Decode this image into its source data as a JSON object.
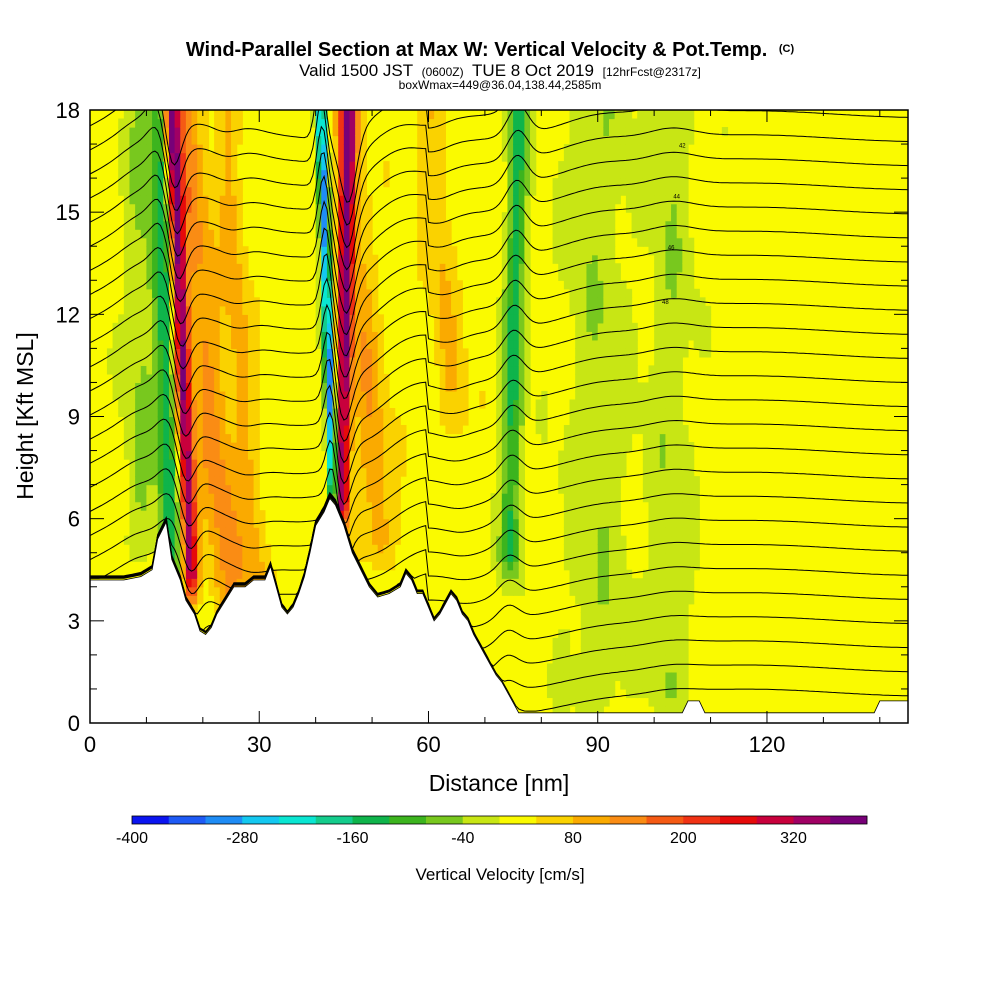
{
  "header": {
    "title": "Wind-Parallel Section at Max W: Vertical Velocity & Pot.Temp.",
    "title_mark": "(C)",
    "valid_prefix": "Valid 1500 JST",
    "valid_utc": "(0600Z)",
    "valid_date": "TUE 8 Oct 2019",
    "forecast": "[12hrFcst@2317z]",
    "box_info": "boxWmax=449@36.04,138.44,2585m"
  },
  "chart_data": {
    "type": "heatmap",
    "title": "Wind-Parallel Section at Max W: Vertical Velocity & Pot.Temp.",
    "xlabel": "Distance [nm]",
    "ylabel": "Height [Kft MSL]",
    "xlim": [
      0,
      145
    ],
    "ylim": [
      0,
      18
    ],
    "x_ticks": [
      0,
      30,
      60,
      90,
      120
    ],
    "y_ticks": [
      0,
      3,
      6,
      9,
      12,
      15,
      18
    ],
    "legend": {
      "title": "Vertical Velocity [cm/s]",
      "placement": "bottom",
      "levels": [
        -400,
        -360,
        -320,
        -280,
        -240,
        -200,
        -160,
        -120,
        -80,
        -40,
        0,
        40,
        80,
        120,
        160,
        200,
        240,
        280,
        320,
        360,
        400
      ],
      "tick_labels": [
        "-400",
        "-280",
        "-160",
        "-40",
        "80",
        "200",
        "320"
      ],
      "colors": [
        "#0a14f0",
        "#1e5af5",
        "#1e8cf5",
        "#14c8f0",
        "#0ae6d2",
        "#14cc8c",
        "#0fb44b",
        "#3cb41e",
        "#78c81e",
        "#c8e614",
        "#fafa00",
        "#fad200",
        "#faaa00",
        "#fa8c14",
        "#f55a14",
        "#f03214",
        "#e60a0a",
        "#c8003c",
        "#a00064",
        "#780078"
      ]
    },
    "background_w": 20,
    "updraft_bands": [
      {
        "x": 16.5,
        "w": 330,
        "width": 1.3,
        "ybot": 3.5,
        "slant": -2.5
      },
      {
        "x": 21,
        "w": 110,
        "width": 3.5,
        "ybot": 3,
        "slant": -6
      },
      {
        "x": 27,
        "w": 70,
        "width": 2.2,
        "ybot": 3.5,
        "slant": -4
      },
      {
        "x": 45,
        "w": 350,
        "width": 1.2,
        "ybot": 5.5,
        "slant": 1
      },
      {
        "x": 49,
        "w": 90,
        "width": 3,
        "ybot": 4.5,
        "slant": -5
      },
      {
        "x": 64,
        "w": 60,
        "width": 2.5,
        "ybot": 8,
        "slant": -5
      }
    ],
    "downdraft_bands": [
      {
        "x": 13.5,
        "w": -160,
        "width": 1.8,
        "ybot": 3.5,
        "slant": -1.5
      },
      {
        "x": 42.5,
        "w": -320,
        "width": 0.9,
        "ybot": 6,
        "slant": -2
      },
      {
        "x": 75,
        "w": -150,
        "width": 1.8,
        "ybot": 4,
        "slant": 1.2
      },
      {
        "x": 9,
        "w": -60,
        "width": 3,
        "ybot": 4.5,
        "slant": 0
      },
      {
        "x": 90,
        "w": -50,
        "width": 6,
        "ybot": 0,
        "slant": 0
      },
      {
        "x": 103,
        "w": -50,
        "width": 4,
        "ybot": 0,
        "slant": 0
      }
    ],
    "terrain": [
      [
        0,
        4.2
      ],
      [
        6,
        4.2
      ],
      [
        9,
        4.3
      ],
      [
        11,
        4.5
      ],
      [
        12,
        5.4
      ],
      [
        13.5,
        5.9
      ],
      [
        14.5,
        4.8
      ],
      [
        16,
        4.2
      ],
      [
        17,
        3.6
      ],
      [
        18.5,
        3.2
      ],
      [
        19.5,
        2.7
      ],
      [
        20.5,
        2.6
      ],
      [
        21.5,
        2.8
      ],
      [
        22.5,
        3.2
      ],
      [
        24,
        3.6
      ],
      [
        25.5,
        4.0
      ],
      [
        27.5,
        4.0
      ],
      [
        29,
        4.2
      ],
      [
        31,
        4.2
      ],
      [
        32,
        4.6
      ],
      [
        33,
        4.0
      ],
      [
        34,
        3.4
      ],
      [
        35,
        3.2
      ],
      [
        36,
        3.4
      ],
      [
        37,
        3.8
      ],
      [
        38,
        4.3
      ],
      [
        39,
        5.0
      ],
      [
        40,
        5.8
      ],
      [
        41.5,
        6.2
      ],
      [
        42.5,
        6.6
      ],
      [
        43.5,
        6.4
      ],
      [
        45,
        5.8
      ],
      [
        46.5,
        5.0
      ],
      [
        48,
        4.5
      ],
      [
        49.5,
        4.0
      ],
      [
        51,
        3.7
      ],
      [
        53,
        3.8
      ],
      [
        55,
        4.0
      ],
      [
        56,
        4.4
      ],
      [
        57,
        4.2
      ],
      [
        58,
        3.8
      ],
      [
        59,
        3.8
      ],
      [
        60,
        3.4
      ],
      [
        61,
        3.0
      ],
      [
        62,
        3.2
      ],
      [
        63,
        3.5
      ],
      [
        64,
        3.8
      ],
      [
        65,
        3.6
      ],
      [
        66,
        3.2
      ],
      [
        67,
        3.0
      ],
      [
        68,
        2.6
      ],
      [
        69,
        2.3
      ],
      [
        70,
        2.0
      ],
      [
        71,
        1.7
      ],
      [
        72,
        1.4
      ],
      [
        73,
        1.2
      ],
      [
        74,
        0.9
      ],
      [
        75,
        0.6
      ],
      [
        76,
        0.3
      ],
      [
        78,
        0.3
      ],
      [
        105,
        0.3
      ],
      [
        106,
        0.65
      ],
      [
        108,
        0.65
      ],
      [
        109,
        0.3
      ],
      [
        126,
        0.3
      ],
      [
        139,
        0.3
      ],
      [
        140,
        0.65
      ],
      [
        145,
        0.65
      ]
    ],
    "theta_contours": {
      "count": 26,
      "upper_level_labels": [
        "42",
        "44",
        "46",
        "48"
      ]
    }
  }
}
